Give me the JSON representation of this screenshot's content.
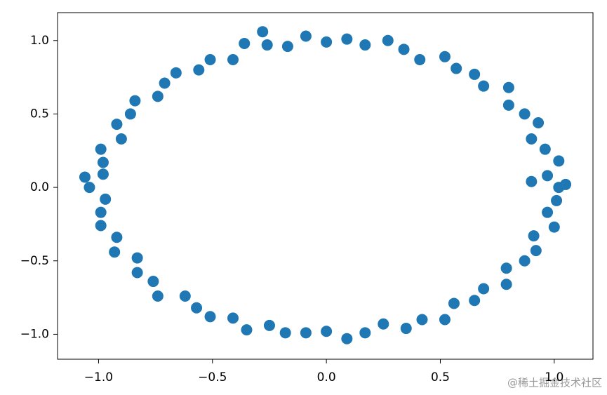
{
  "chart_data": {
    "type": "scatter",
    "color": "#1f77b4",
    "grid": false,
    "watermark": "@稀土掘金技术社区",
    "xlim": [
      -1.18,
      1.17
    ],
    "ylim": [
      -1.17,
      1.19
    ],
    "xticks": [
      {
        "value": -1.0,
        "label": "−1.0"
      },
      {
        "value": -0.5,
        "label": "−0.5"
      },
      {
        "value": 0.0,
        "label": "0.0"
      },
      0.5,
      {
        "value": 1.0,
        "label": "1.0"
      }
    ],
    "yticks": [
      {
        "value": -1.0,
        "label": "−1.0"
      },
      {
        "value": -0.5,
        "label": "−0.5"
      },
      {
        "value": 0.0,
        "label": "0.0"
      },
      0.5,
      {
        "value": 1.0,
        "label": "1.0"
      }
    ],
    "x": [
      1.02,
      0.97,
      1.02,
      0.96,
      0.9,
      0.93,
      0.87,
      0.8,
      0.8,
      0.69,
      0.65,
      0.57,
      0.52,
      0.41,
      0.34,
      0.27,
      0.17,
      0.09,
      0,
      -0.09,
      -0.17,
      -0.26,
      -0.36,
      -0.41,
      -0.51,
      -0.56,
      -0.66,
      -0.71,
      -0.74,
      -0.84,
      -0.86,
      -0.92,
      -0.9,
      -0.99,
      -0.98,
      -0.98,
      -1.04,
      -0.97,
      -0.99,
      -0.99,
      -0.92,
      -0.93,
      -0.83,
      -0.83,
      -0.76,
      -0.74,
      -0.62,
      -0.57,
      -0.51,
      -0.41,
      -0.35,
      -0.25,
      -0.18,
      -0.09,
      0,
      0.09,
      0.17,
      0.25,
      0.35,
      0.42,
      0.52,
      0.56,
      0.65,
      0.69,
      0.79,
      0.79,
      0.87,
      0.92,
      0.91,
      1.0,
      0.97,
      1.01,
      0.9,
      -0.28,
      -1.06,
      1.05
    ],
    "y": [
      0,
      0.08,
      0.18,
      0.26,
      0.33,
      0.44,
      0.5,
      0.56,
      0.68,
      0.69,
      0.77,
      0.81,
      0.89,
      0.87,
      0.94,
      1.0,
      0.97,
      1.01,
      0.99,
      1.03,
      0.96,
      0.97,
      0.98,
      0.87,
      0.87,
      0.8,
      0.78,
      0.71,
      0.62,
      0.59,
      0.5,
      0.43,
      0.33,
      0.26,
      0.17,
      0.09,
      0,
      -0.08,
      -0.17,
      -0.26,
      -0.34,
      -0.44,
      -0.48,
      -0.58,
      -0.64,
      -0.74,
      -0.74,
      -0.82,
      -0.88,
      -0.89,
      -0.97,
      -0.94,
      -0.99,
      -0.99,
      -0.98,
      -1.03,
      -0.99,
      -0.93,
      -0.96,
      -0.9,
      -0.9,
      -0.79,
      -0.77,
      -0.69,
      -0.66,
      -0.55,
      -0.5,
      -0.43,
      -0.33,
      -0.27,
      -0.17,
      -0.09,
      0.04,
      1.06,
      0.07,
      0.02
    ]
  }
}
